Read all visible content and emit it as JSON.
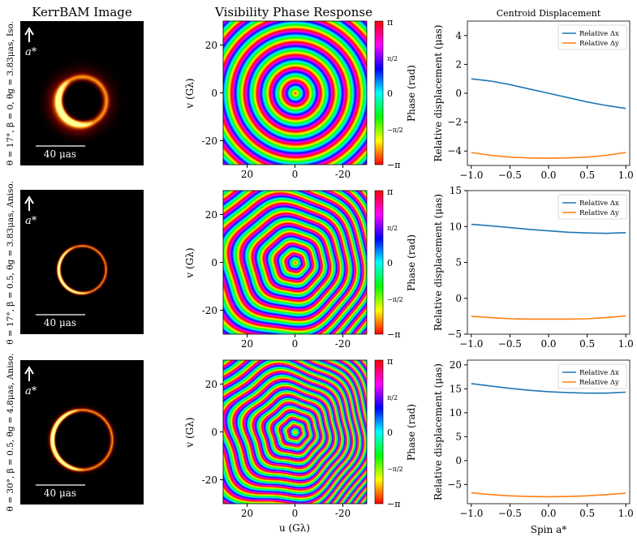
{
  "column_titles": {
    "image": "KerrBAM Image",
    "phase": "Visibility Phase Response",
    "centroid": "Centroid Displacement"
  },
  "rows": [
    {
      "row_label": "θ = 17°, β = 0, θg = 3.83μas, Iso.",
      "spin_label": "a*",
      "scale_bar_label": "40 μas",
      "image_params": {
        "ring_radius_frac": 0.19,
        "brightness_asym": 0.75,
        "ring_width": 0.018,
        "glow": 0.06,
        "bright_angle_deg": 150
      },
      "phase_params": {
        "rings": 5.6,
        "tilt": 0.0,
        "shift": 0.0
      }
    },
    {
      "row_label": "θ = 17°, β = 0.5, θg = 3.83μas, Aniso.",
      "spin_label": "a*",
      "scale_bar_label": "40 μas",
      "image_params": {
        "ring_radius_frac": 0.19,
        "brightness_asym": 0.7,
        "ring_width": 0.008,
        "glow": 0.012,
        "bright_angle_deg": 160
      },
      "phase_params": {
        "rings": 7.5,
        "tilt": 0.35,
        "shift": 0.06
      }
    },
    {
      "row_label": "θ = 30°, β = 0.5, θg = 4.8μas, Aniso.",
      "spin_label": "a*",
      "scale_bar_label": "40 μas",
      "image_params": {
        "ring_radius_frac": 0.24,
        "brightness_asym": 0.9,
        "ring_width": 0.01,
        "glow": 0.02,
        "bright_angle_deg": 175
      },
      "phase_params": {
        "rings": 10.0,
        "tilt": 0.6,
        "shift": 0.12
      }
    }
  ],
  "phase_axes": {
    "xlabel": "u (Gλ)",
    "ylabel": "v (Gλ)",
    "xticks": [
      20,
      0,
      -20
    ],
    "yticks": [
      20,
      0,
      -20
    ],
    "range": [
      -30,
      30
    ],
    "colorbar_label": "Phase (rad)",
    "colorbar_ticks": [
      "π",
      "π/2",
      "0",
      "−π/2",
      "−π"
    ]
  },
  "chart_data": [
    {
      "type": "line",
      "title": "Centroid Displacement",
      "xlabel": "",
      "ylabel": "Relative displacement (μas)",
      "xlim": [
        -1.05,
        1.05
      ],
      "ylim": [
        -5,
        5
      ],
      "xticks": [
        -1.0,
        -0.5,
        0.0,
        0.5,
        1.0
      ],
      "yticks": [
        -4,
        -2,
        0,
        2,
        4
      ],
      "legend": "top-right",
      "x": [
        -1.0,
        -0.75,
        -0.5,
        -0.25,
        0.0,
        0.25,
        0.5,
        0.75,
        1.0
      ],
      "series": [
        {
          "name": "Relative Δx",
          "color": "#1f77b4",
          "values": [
            1.0,
            0.85,
            0.6,
            0.3,
            0.0,
            -0.3,
            -0.6,
            -0.85,
            -1.05
          ]
        },
        {
          "name": "Relative Δy",
          "color": "#ff7f0e",
          "values": [
            -4.1,
            -4.3,
            -4.42,
            -4.48,
            -4.5,
            -4.48,
            -4.42,
            -4.3,
            -4.1
          ]
        }
      ]
    },
    {
      "type": "line",
      "title": "",
      "xlabel": "",
      "ylabel": "Relative displacement (μas)",
      "xlim": [
        -1.05,
        1.05
      ],
      "ylim": [
        -5,
        15
      ],
      "xticks": [
        -1.0,
        -0.5,
        0.0,
        0.5,
        1.0
      ],
      "yticks": [
        -5,
        0,
        5,
        10,
        15
      ],
      "legend": "top-right",
      "x": [
        -1.0,
        -0.75,
        -0.5,
        -0.25,
        0.0,
        0.25,
        0.5,
        0.75,
        1.0
      ],
      "series": [
        {
          "name": "Relative Δx",
          "color": "#1f77b4",
          "values": [
            10.3,
            10.1,
            9.85,
            9.6,
            9.4,
            9.2,
            9.1,
            9.05,
            9.15
          ]
        },
        {
          "name": "Relative Δy",
          "color": "#ff7f0e",
          "values": [
            -2.5,
            -2.7,
            -2.85,
            -2.9,
            -2.9,
            -2.9,
            -2.85,
            -2.7,
            -2.45
          ]
        }
      ]
    },
    {
      "type": "line",
      "title": "",
      "xlabel": "Spin a*",
      "ylabel": "Relative displacement (μas)",
      "xlim": [
        -1.05,
        1.05
      ],
      "ylim": [
        -9,
        21
      ],
      "xticks": [
        -1.0,
        -0.5,
        0.0,
        0.5,
        1.0
      ],
      "yticks": [
        -5,
        0,
        5,
        10,
        15,
        20
      ],
      "legend": "top-right",
      "x": [
        -1.0,
        -0.75,
        -0.5,
        -0.25,
        0.0,
        0.25,
        0.5,
        0.75,
        1.0
      ],
      "series": [
        {
          "name": "Relative Δx",
          "color": "#1f77b4",
          "values": [
            16.1,
            15.6,
            15.1,
            14.7,
            14.4,
            14.2,
            14.1,
            14.1,
            14.3
          ]
        },
        {
          "name": "Relative Δy",
          "color": "#ff7f0e",
          "values": [
            -6.7,
            -7.1,
            -7.35,
            -7.5,
            -7.55,
            -7.5,
            -7.35,
            -7.1,
            -6.8
          ]
        }
      ]
    }
  ]
}
